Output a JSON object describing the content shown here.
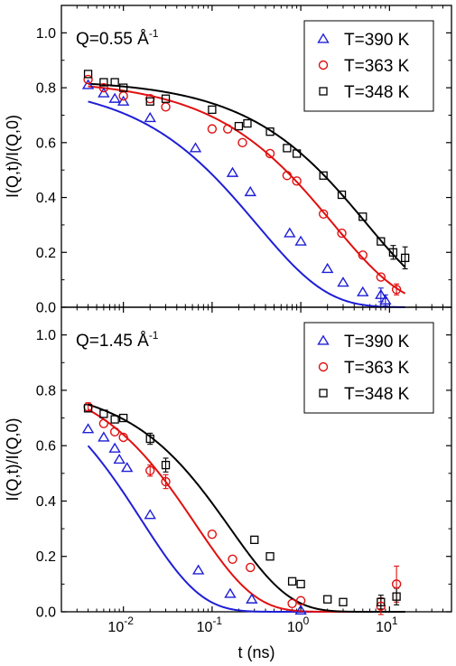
{
  "chart_data": {
    "type": "scatter",
    "x_scale": "log",
    "xlabel": "t (ns)",
    "xlim": [
      0.002,
      50
    ],
    "x_tick_mantissa": "10",
    "x_ticks": [
      {
        "value": 0.01,
        "exp": "-2"
      },
      {
        "value": 0.1,
        "exp": "-1"
      },
      {
        "value": 1,
        "exp": "0"
      },
      {
        "value": 10,
        "exp": "1"
      }
    ],
    "ylabel": "I(Q,t)/I(Q,0)",
    "ylim": [
      0.0,
      1.1
    ],
    "y_ticks": [
      "0.0",
      "0.2",
      "0.4",
      "0.6",
      "0.8",
      "1.0"
    ],
    "legend_position": "top-right",
    "panels": [
      {
        "q_label_main": "Q=0.55 Å",
        "q_label_sup": "-1",
        "series": [
          {
            "name": "T=390 K",
            "color": "#1f1fd6",
            "marker": "triangle",
            "points": [
              [
                0.004,
                0.81
              ],
              [
                0.006,
                0.78
              ],
              [
                0.008,
                0.76
              ],
              [
                0.01,
                0.75
              ],
              [
                0.02,
                0.69
              ],
              [
                0.065,
                0.58
              ],
              [
                0.17,
                0.49
              ],
              [
                0.27,
                0.42
              ],
              [
                0.75,
                0.27
              ],
              [
                1.0,
                0.24
              ],
              [
                2.0,
                0.14
              ],
              [
                3.0,
                0.09
              ],
              [
                5.0,
                0.055
              ],
              [
                8.0,
                0.045
              ],
              [
                9.0,
                0.025
              ]
            ],
            "errors": [
              [
                8.0,
                0.025
              ],
              [
                9.0,
                0.02
              ]
            ],
            "fit": [
              0.82,
              0.32,
              0.55
            ]
          },
          {
            "name": "T=363 K",
            "color": "#e01010",
            "marker": "circle",
            "points": [
              [
                0.004,
                0.83
              ],
              [
                0.006,
                0.8
              ],
              [
                0.01,
                0.77
              ],
              [
                0.02,
                0.76
              ],
              [
                0.03,
                0.73
              ],
              [
                0.1,
                0.65
              ],
              [
                0.15,
                0.65
              ],
              [
                0.22,
                0.6
              ],
              [
                0.45,
                0.56
              ],
              [
                0.7,
                0.48
              ],
              [
                0.9,
                0.46
              ],
              [
                1.8,
                0.34
              ],
              [
                2.9,
                0.27
              ],
              [
                5.0,
                0.19
              ],
              [
                8.0,
                0.11
              ],
              [
                12.0,
                0.065
              ]
            ],
            "errors": [
              [
                12.0,
                0.02
              ]
            ],
            "fit": [
              0.83,
              2.3,
              0.55
            ]
          },
          {
            "name": "T=348 K",
            "color": "#000000",
            "marker": "square",
            "points": [
              [
                0.004,
                0.85
              ],
              [
                0.006,
                0.82
              ],
              [
                0.008,
                0.82
              ],
              [
                0.01,
                0.8
              ],
              [
                0.02,
                0.75
              ],
              [
                0.03,
                0.76
              ],
              [
                0.1,
                0.72
              ],
              [
                0.2,
                0.66
              ],
              [
                0.25,
                0.67
              ],
              [
                0.45,
                0.64
              ],
              [
                0.7,
                0.58
              ],
              [
                0.9,
                0.56
              ],
              [
                1.8,
                0.48
              ],
              [
                2.9,
                0.41
              ],
              [
                5.0,
                0.33
              ],
              [
                8.0,
                0.24
              ],
              [
                11.0,
                0.2
              ],
              [
                15.0,
                0.18
              ]
            ],
            "errors": [
              [
                11.0,
                0.025
              ],
              [
                15.0,
                0.04
              ]
            ],
            "fit": [
              0.83,
              5.5,
              0.55
            ]
          }
        ]
      },
      {
        "q_label_main": "Q=1.45 Å",
        "q_label_sup": "-1",
        "series": [
          {
            "name": "T=390 K",
            "color": "#1f1fd6",
            "marker": "triangle",
            "points": [
              [
                0.004,
                0.66
              ],
              [
                0.006,
                0.63
              ],
              [
                0.008,
                0.59
              ],
              [
                0.009,
                0.55
              ],
              [
                0.011,
                0.52
              ],
              [
                0.02,
                0.35
              ],
              [
                0.07,
                0.15
              ],
              [
                0.16,
                0.065
              ],
              [
                0.28,
                0.045
              ],
              [
                1.0,
                0.005
              ]
            ],
            "errors": [],
            "fit": [
              0.9,
              0.016,
              0.65
            ]
          },
          {
            "name": "T=363 K",
            "color": "#e01010",
            "marker": "circle",
            "points": [
              [
                0.004,
                0.74
              ],
              [
                0.006,
                0.68
              ],
              [
                0.008,
                0.65
              ],
              [
                0.01,
                0.63
              ],
              [
                0.02,
                0.51
              ],
              [
                0.03,
                0.47
              ],
              [
                0.1,
                0.28
              ],
              [
                0.17,
                0.19
              ],
              [
                0.27,
                0.16
              ],
              [
                0.8,
                0.03
              ],
              [
                1.0,
                0.04
              ],
              [
                8.0,
                0.02
              ],
              [
                12.0,
                0.1
              ]
            ],
            "errors": [
              [
                0.004,
                0.015
              ],
              [
                0.02,
                0.02
              ],
              [
                0.03,
                0.025
              ],
              [
                8.0,
                0.03
              ],
              [
                12.0,
                0.065
              ]
            ],
            "fit": [
              0.86,
              0.065,
              0.65
            ]
          },
          {
            "name": "T=348 K",
            "color": "#000000",
            "marker": "square",
            "points": [
              [
                0.004,
                0.735
              ],
              [
                0.006,
                0.715
              ],
              [
                0.008,
                0.695
              ],
              [
                0.01,
                0.7
              ],
              [
                0.02,
                0.625
              ],
              [
                0.03,
                0.53
              ],
              [
                0.3,
                0.26
              ],
              [
                0.45,
                0.2
              ],
              [
                0.8,
                0.11
              ],
              [
                1.0,
                0.1
              ],
              [
                2.0,
                0.045
              ],
              [
                3.0,
                0.035
              ],
              [
                8.0,
                0.035
              ],
              [
                12.0,
                0.055
              ]
            ],
            "errors": [
              [
                0.02,
                0.02
              ],
              [
                0.03,
                0.025
              ],
              [
                8.0,
                0.025
              ],
              [
                12.0,
                0.03
              ]
            ],
            "fit": [
              0.82,
              0.16,
              0.65
            ]
          }
        ]
      }
    ]
  }
}
